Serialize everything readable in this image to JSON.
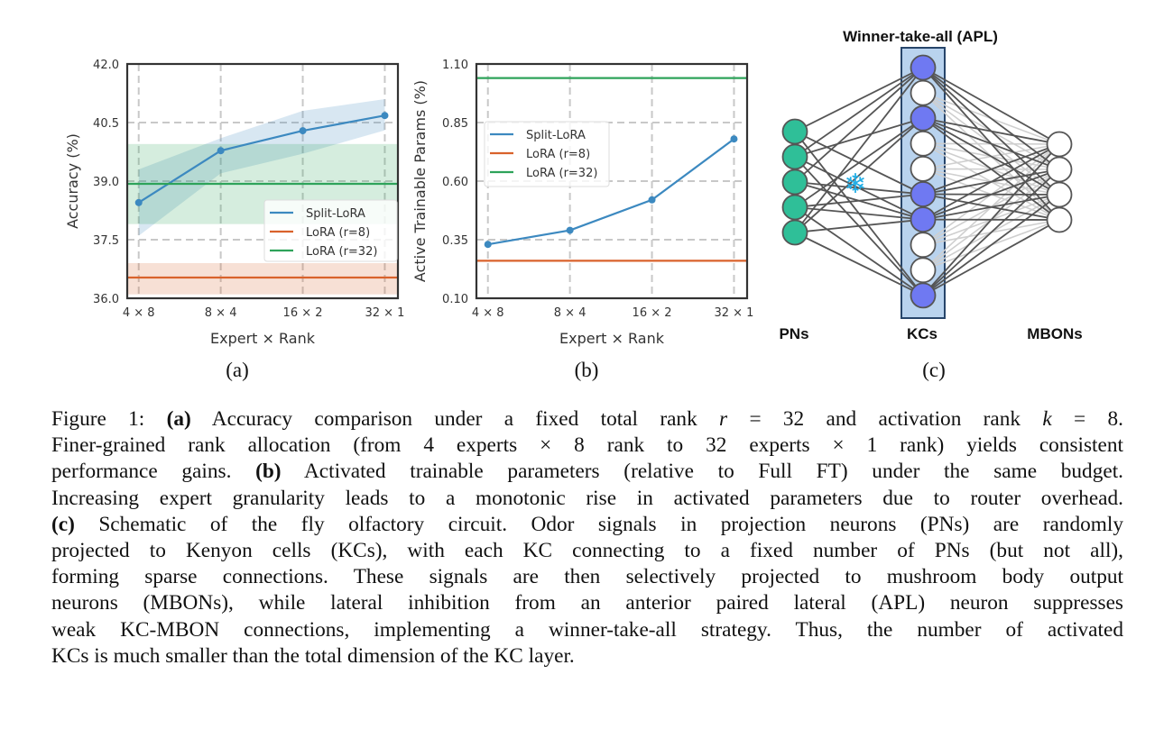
{
  "chart_data": [
    {
      "type": "line",
      "panel": "(a)",
      "xlabel": "Expert × Rank",
      "ylabel": "Accuracy (%)",
      "categories": [
        "4 × 8",
        "8 × 4",
        "16 × 2",
        "32 × 1"
      ],
      "ylim": [
        36.0,
        42.0
      ],
      "yticks": [
        "36.0",
        "37.5",
        "39.0",
        "40.5",
        "42.0"
      ],
      "grid": true,
      "legend_location": "lower-right",
      "series": [
        {
          "name": "Split-LoRA",
          "kind": "markers-line",
          "color": "#3c89c0",
          "values": [
            38.45,
            39.78,
            40.29,
            40.68
          ],
          "band_low": [
            37.6,
            39.2,
            39.7,
            40.3
          ],
          "band_high": [
            39.3,
            40.1,
            40.8,
            41.1
          ]
        },
        {
          "name": "LoRA (r=8)",
          "kind": "hline",
          "color": "#d9622b",
          "value": 36.53,
          "band_low": 36.1,
          "band_high": 36.9
        },
        {
          "name": "LoRA (r=32)",
          "kind": "hline",
          "color": "#2ea35a",
          "value": 38.93,
          "band_low": 37.9,
          "band_high": 39.95
        }
      ]
    },
    {
      "type": "line",
      "panel": "(b)",
      "xlabel": "Expert × Rank",
      "ylabel": "Active Trainable Params (%)",
      "categories": [
        "4 × 8",
        "8 × 4",
        "16 × 2",
        "32 × 1"
      ],
      "ylim": [
        0.1,
        1.1
      ],
      "yticks": [
        "0.10",
        "0.35",
        "0.60",
        "0.85",
        "1.10"
      ],
      "grid": true,
      "legend_location": "center-left",
      "series": [
        {
          "name": "Split-LoRA",
          "kind": "markers-line",
          "color": "#3c89c0",
          "values": [
            0.33,
            0.39,
            0.52,
            0.78
          ]
        },
        {
          "name": "LoRA (r=8)",
          "kind": "hline",
          "color": "#d9622b",
          "value": 0.26
        },
        {
          "name": "LoRA (r=32)",
          "kind": "hline",
          "color": "#2ea35a",
          "value": 1.04
        }
      ]
    }
  ],
  "diagram": {
    "title": "Winner-take-all (APL)",
    "labels": {
      "pns": "PNs",
      "kcs": "KCs",
      "mbons": "MBONs"
    },
    "pn_count": 5,
    "kc_active": [
      true,
      false,
      true,
      false,
      false,
      true,
      true,
      false,
      false,
      true
    ],
    "mbon_count": 4,
    "pn_kc_edges": [
      [
        0,
        0
      ],
      [
        0,
        5
      ],
      [
        0,
        9
      ],
      [
        1,
        2
      ],
      [
        1,
        6
      ],
      [
        1,
        9
      ],
      [
        2,
        0
      ],
      [
        2,
        6
      ],
      [
        2,
        5
      ],
      [
        3,
        2
      ],
      [
        3,
        5
      ],
      [
        3,
        9
      ],
      [
        4,
        0
      ],
      [
        4,
        6
      ],
      [
        4,
        2
      ],
      [
        1,
        0
      ],
      [
        3,
        6
      ],
      [
        4,
        9
      ]
    ],
    "colors": {
      "pn": "#2fbf98",
      "kc_active": "#6f79f2",
      "kc_inactive": "#ffffff",
      "box": "#b9d3ee",
      "edge": "#555555",
      "edge_faint": "#cfcfcf",
      "snowflake": "#22aee6"
    }
  },
  "panel_labels": [
    "(a)",
    "(b)",
    "(c)"
  ],
  "caption": {
    "lines": [
      [
        {
          "t": "Figure 1: "
        },
        {
          "t": "(a)",
          "s": "b"
        },
        {
          "t": " Accuracy comparison under a fixed total rank "
        },
        {
          "t": "r",
          "s": "i"
        },
        {
          "t": " = 32 and activation rank "
        },
        {
          "t": "k",
          "s": "i"
        },
        {
          "t": " = 8."
        }
      ],
      [
        {
          "t": "Finer-grained rank allocation (from 4 experts × 8 rank to 32 experts × 1 rank) yields consistent"
        }
      ],
      [
        {
          "t": "performance gains. "
        },
        {
          "t": "(b)",
          "s": "b"
        },
        {
          "t": " Activated trainable parameters (relative to Full FT) under the same budget."
        }
      ],
      [
        {
          "t": "Increasing expert granularity leads to a monotonic rise in activated parameters due to router overhead."
        }
      ],
      [
        {
          "t": "(c)",
          "s": "b"
        },
        {
          "t": " Schematic of the fly olfactory circuit. Odor signals in projection neurons (PNs) are randomly"
        }
      ],
      [
        {
          "t": "projected to Kenyon cells (KCs), with each KC connecting to a fixed number of PNs (but not all),"
        }
      ],
      [
        {
          "t": "forming sparse connections. These signals are then selectively projected to mushroom body output"
        }
      ],
      [
        {
          "t": "neurons (MBONs), while lateral inhibition from an anterior paired lateral (APL) neuron suppresses"
        }
      ],
      [
        {
          "t": "weak KC-MBON connections, implementing a winner-take-all strategy. Thus, the number of activated"
        }
      ],
      [
        {
          "t": "KCs is much smaller than the total dimension of the KC layer."
        }
      ]
    ]
  }
}
